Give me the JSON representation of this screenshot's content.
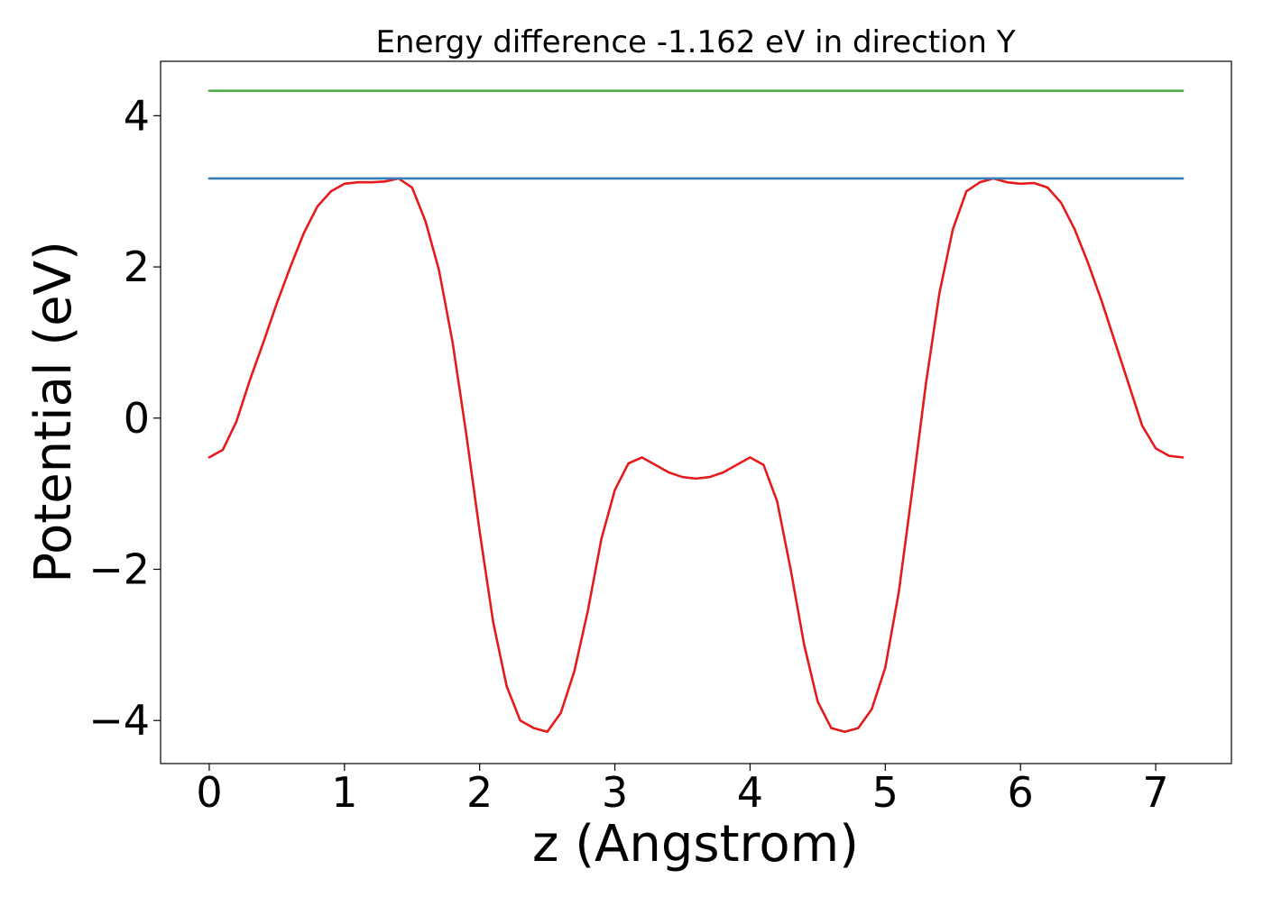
{
  "chart_data": {
    "type": "line",
    "title": "Energy difference -1.162 eV in direction Y",
    "xlabel": "z (Angstrom)",
    "ylabel": "Potential (eV)",
    "xlim": [
      -0.36,
      7.56
    ],
    "ylim": [
      -4.57,
      4.72
    ],
    "xticks": [
      0,
      1,
      2,
      3,
      4,
      5,
      6,
      7
    ],
    "yticks": [
      -4,
      -2,
      0,
      2,
      4
    ],
    "xtick_labels": [
      "0",
      "1",
      "2",
      "3",
      "4",
      "5",
      "6",
      "7"
    ],
    "ytick_labels": [
      "−4",
      "−2",
      "0",
      "2",
      "4"
    ],
    "grid": false,
    "series": [
      {
        "color": "#e41a1c",
        "x": [
          0.0,
          0.1,
          0.2,
          0.3,
          0.4,
          0.5,
          0.6,
          0.7,
          0.8,
          0.9,
          1.0,
          1.1,
          1.2,
          1.3,
          1.4,
          1.5,
          1.6,
          1.7,
          1.8,
          1.9,
          2.0,
          2.1,
          2.2,
          2.3,
          2.4,
          2.5,
          2.6,
          2.7,
          2.8,
          2.9,
          3.0,
          3.1,
          3.2,
          3.3,
          3.4,
          3.5,
          3.6,
          3.7,
          3.8,
          3.9,
          4.0,
          4.1,
          4.2,
          4.3,
          4.4,
          4.5,
          4.6,
          4.7,
          4.8,
          4.9,
          5.0,
          5.1,
          5.2,
          5.3,
          5.4,
          5.5,
          5.6,
          5.7,
          5.8,
          5.9,
          6.0,
          6.1,
          6.2,
          6.3,
          6.4,
          6.5,
          6.6,
          6.7,
          6.8,
          6.9,
          7.0,
          7.1,
          7.2
        ],
        "y": [
          -0.52,
          -0.42,
          -0.05,
          0.5,
          1.0,
          1.52,
          2.0,
          2.45,
          2.8,
          3.0,
          3.1,
          3.12,
          3.12,
          3.13,
          3.17,
          3.05,
          2.6,
          1.95,
          1.0,
          -0.2,
          -1.5,
          -2.7,
          -3.55,
          -4.0,
          -4.1,
          -4.15,
          -3.9,
          -3.35,
          -2.55,
          -1.6,
          -0.95,
          -0.6,
          -0.52,
          -0.62,
          -0.72,
          -0.78,
          -0.8,
          -0.78,
          -0.72,
          -0.62,
          -0.52,
          -0.62,
          -1.1,
          -2.0,
          -3.0,
          -3.75,
          -4.1,
          -4.15,
          -4.1,
          -3.85,
          -3.3,
          -2.3,
          -0.95,
          0.45,
          1.65,
          2.5,
          3.0,
          3.12,
          3.17,
          3.12,
          3.1,
          3.11,
          3.05,
          2.85,
          2.5,
          2.05,
          1.55,
          1.0,
          0.45,
          -0.1,
          -0.4,
          -0.5,
          -0.52
        ]
      },
      {
        "color": "#377eb8",
        "x": [
          0.0,
          7.2
        ],
        "y": [
          3.17,
          3.17
        ]
      },
      {
        "color": "#4daf4a",
        "x": [
          0.0,
          7.2
        ],
        "y": [
          4.33,
          4.33
        ]
      }
    ]
  }
}
